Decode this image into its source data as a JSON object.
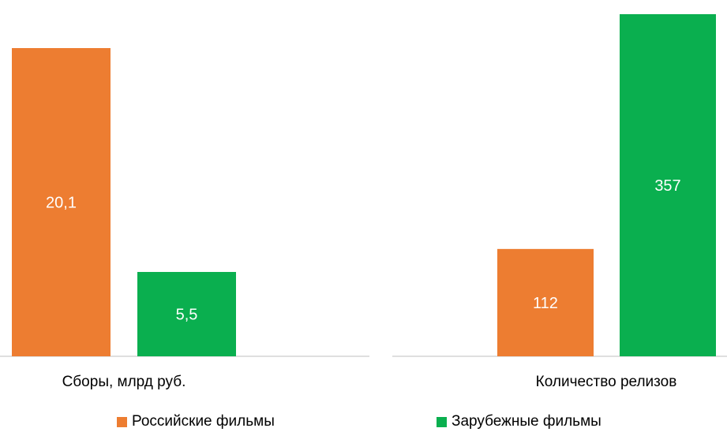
{
  "colors": {
    "russian": "#ED7D31",
    "foreign": "#0AAF4F",
    "axis": "#BFBFBF",
    "bar_label": "#FFFFFF"
  },
  "legend": {
    "russian_label": "Российские фильмы",
    "foreign_label": "Зарубежные фильмы"
  },
  "chart_data": [
    {
      "type": "bar",
      "categories": [
        "Сборы, млрд руб."
      ],
      "series": [
        {
          "name": "Российские фильмы",
          "values": [
            20.1
          ],
          "labels": [
            "20,1"
          ]
        },
        {
          "name": "Зарубежные фильмы",
          "values": [
            5.5
          ],
          "labels": [
            "5,5"
          ]
        }
      ],
      "xlabel": "",
      "ylabel": "",
      "ylim": [
        0,
        25
      ],
      "grid": false,
      "legend": "bottom"
    },
    {
      "type": "bar",
      "categories": [
        "Количество релизов"
      ],
      "series": [
        {
          "name": "Российские фильмы",
          "values": [
            112
          ],
          "labels": [
            "112"
          ]
        },
        {
          "name": "Зарубежные фильмы",
          "values": [
            357
          ],
          "labels": [
            "357"
          ]
        }
      ],
      "xlabel": "",
      "ylabel": "",
      "ylim": [
        0,
        360
      ],
      "grid": false,
      "legend": "bottom"
    }
  ]
}
